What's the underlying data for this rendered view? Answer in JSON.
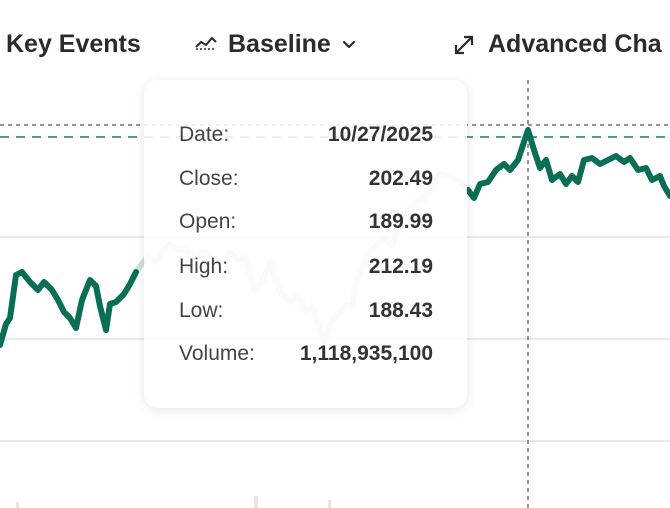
{
  "toolbar": {
    "key_events_label": "Key Events",
    "baseline_label": "Baseline",
    "advanced_label": "Advanced Cha"
  },
  "tooltip": {
    "rows": [
      {
        "label": "Date:",
        "value": "10/27/2025"
      },
      {
        "label": "Close:",
        "value": "202.49"
      },
      {
        "label": "Open:",
        "value": "189.99"
      },
      {
        "label": "High:",
        "value": "212.19"
      },
      {
        "label": "Low:",
        "value": "188.43"
      },
      {
        "label": "Volume:",
        "value": "1,118,935,100"
      }
    ]
  },
  "colors": {
    "line": "#0a6e57",
    "line_faded": "#cfe3dc",
    "baseline_dash": "#1f7a5e",
    "crosshair": "#555555",
    "grid": "#e2e2e2"
  },
  "icons": {
    "baseline": "baseline-icon",
    "chevron": "chevron-down-icon",
    "expand": "expand-icon"
  }
}
